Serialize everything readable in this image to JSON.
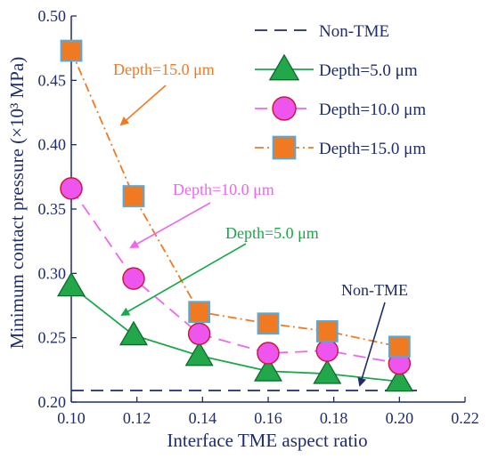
{
  "chart_data": {
    "type": "line",
    "title": "",
    "xlabel": "Interface TME aspect ratio",
    "ylabel": "Minimum contact pressure (×10³ MPa)",
    "xlim": [
      0.1,
      0.22
    ],
    "ylim": [
      0.2,
      0.5
    ],
    "x_ticks": [
      0.1,
      0.12,
      0.14,
      0.16,
      0.18,
      0.2,
      0.22
    ],
    "x_tick_labels": [
      "0.10",
      "0.12",
      "0.14",
      "0.16",
      "0.18",
      "0.20",
      "0.22"
    ],
    "y_ticks": [
      0.2,
      0.25,
      0.3,
      0.35,
      0.4,
      0.45,
      0.5
    ],
    "y_tick_labels": [
      "0.20",
      "0.25",
      "0.30",
      "0.35",
      "0.40",
      "0.45",
      "0.50"
    ],
    "grid": false,
    "legend_position": "top-right",
    "x": [
      0.1,
      0.119,
      0.139,
      0.16,
      0.178,
      0.2
    ],
    "series": [
      {
        "name": "Non-TME",
        "style": "dashed",
        "marker": "none",
        "color": "#1f2d6b",
        "x": [
          0.1,
          0.207
        ],
        "values": [
          0.209,
          0.209
        ]
      },
      {
        "name": "Depth=5.0 μm",
        "style": "solid",
        "marker": "triangle",
        "color": "#1aa84a",
        "fill": "#22a84a",
        "values": [
          0.29,
          0.252,
          0.236,
          0.224,
          0.222,
          0.216
        ]
      },
      {
        "name": "Depth=10.0 μm",
        "style": "dashed",
        "marker": "circle",
        "color": "#ee66ee",
        "fill": "#ee55ee",
        "edge": "#cc1a3a",
        "values": [
          0.366,
          0.296,
          0.253,
          0.238,
          0.24,
          0.23
        ]
      },
      {
        "name": "Depth=15.0 μm",
        "style": "dashdot",
        "marker": "square",
        "color": "#f07a22",
        "fill": "#f07a22",
        "edge": "#55aadd",
        "values": [
          0.473,
          0.36,
          0.27,
          0.261,
          0.255,
          0.243
        ]
      }
    ],
    "annotations": [
      {
        "text": "Depth=15.0 μm",
        "color": "#f07a22"
      },
      {
        "text": "Depth=10.0 μm",
        "color": "#ee66ee"
      },
      {
        "text": "Depth=5.0 μm",
        "color": "#1aa84a"
      },
      {
        "text": "Non-TME",
        "color": "#1f2d6b"
      }
    ],
    "colors": {
      "axes": "#1f2d6b",
      "tick_labels": "#1f2d6b"
    }
  }
}
